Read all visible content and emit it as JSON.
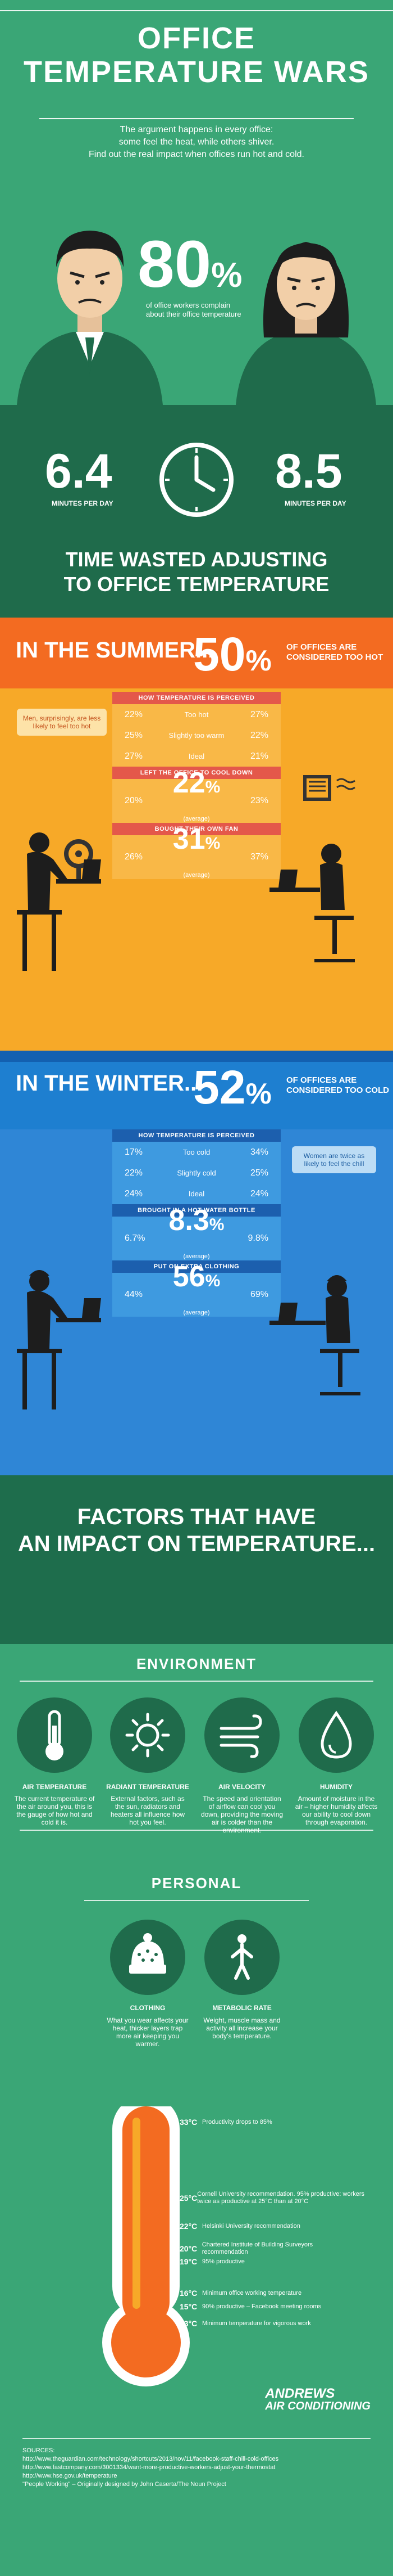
{
  "hero": {
    "title_line1": "OFFICE",
    "title_line2": "TEMPERATURE WARS",
    "intro1": "The argument happens in every office:",
    "intro2": "some feel the heat, while others shiver.",
    "intro3": "Find out the real impact when offices run hot and cold."
  },
  "stat80": {
    "value": "80",
    "unit": "%",
    "caption": "of office workers complain about their office temperature"
  },
  "time": {
    "left_value": "6.4",
    "left_label": "MINUTES PER DAY",
    "right_value": "8.5",
    "right_label": "MINUTES PER DAY",
    "heading1": "TIME WASTED ADJUSTING",
    "heading2": "TO OFFICE TEMPERATURE"
  },
  "summer": {
    "season": "IN THE SUMMER...",
    "pct": "50",
    "unit": "%",
    "note1": "OF OFFICES ARE",
    "note2": "CONSIDERED TOO HOT",
    "callout": "Men, surprisingly, are less likely to feel too hot",
    "perceived_header": "HOW TEMPERATURE IS PERCEIVED",
    "perceived": [
      {
        "left": "22%",
        "label": "Too hot",
        "right": "27%"
      },
      {
        "left": "25%",
        "label": "Slightly too warm",
        "right": "22%"
      },
      {
        "left": "27%",
        "label": "Ideal",
        "right": "21%"
      }
    ],
    "left_office_header": "LEFT THE OFFICE TO COOL DOWN",
    "left_office": {
      "left": "20%",
      "center": "22",
      "unit": "%",
      "avg": "(average)",
      "right": "23%"
    },
    "fan_header": "BOUGHT THEIR OWN FAN",
    "fan": {
      "left": "26%",
      "center": "31",
      "unit": "%",
      "avg": "(average)",
      "right": "37%"
    }
  },
  "winter": {
    "season": "IN THE WINTER...",
    "pct": "52",
    "unit": "%",
    "note1": "OF OFFICES ARE",
    "note2": "CONSIDERED TOO COLD",
    "callout": "Women are twice as likely to feel the chill",
    "perceived_header": "HOW TEMPERATURE IS PERCEIVED",
    "perceived": [
      {
        "left": "17%",
        "label": "Too cold",
        "right": "34%"
      },
      {
        "left": "22%",
        "label": "Slightly cold",
        "right": "25%"
      },
      {
        "left": "24%",
        "label": "Ideal",
        "right": "24%"
      }
    ],
    "bottle_header": "BROUGHT IN A HOT WATER BOTTLE",
    "bottle": {
      "left": "6.7%",
      "center": "8.3",
      "unit": "%",
      "avg": "(average)",
      "right": "9.8%"
    },
    "clothing_header": "PUT ON EXTRA CLOTHING",
    "clothing": {
      "left": "44%",
      "center": "56",
      "unit": "%",
      "avg": "(average)",
      "right": "69%"
    }
  },
  "factors": {
    "heading1": "FACTORS THAT HAVE",
    "heading2": "AN IMPACT ON TEMPERATURE..."
  },
  "environment": {
    "heading": "ENVIRONMENT",
    "items": [
      {
        "title": "AIR TEMPERATURE",
        "desc": "The current temperature of the air around you, this is the gauge of how hot and cold it is."
      },
      {
        "title": "RADIANT TEMPERATURE",
        "desc": "External factors, such as the sun, radiators and heaters all influence how hot you feel."
      },
      {
        "title": "AIR VELOCITY",
        "desc": "The speed and orientation of airflow can cool you down, providing the moving air is colder than the environment."
      },
      {
        "title": "HUMIDITY",
        "desc": "Amount of moisture in the air – higher humidity affects our ability to cool down through evaporation."
      }
    ]
  },
  "personal": {
    "heading": "PERSONAL",
    "items": [
      {
        "title": "CLOTHING",
        "desc": "What you wear affects your heat, thicker layers trap more air keeping you warmer."
      },
      {
        "title": "METABOLIC RATE",
        "desc": "Weight, muscle mass and activity all increase your body's temperature."
      }
    ]
  },
  "thermometer": {
    "marks": [
      {
        "temp": "33°C",
        "text": "Productivity drops to 85%"
      },
      {
        "temp": "25°C",
        "text": "Cornell University recommendation. 95% productive: workers twice as productive at 25°C than at 20°C"
      },
      {
        "temp": "22°C",
        "text": "Helsinki University recommendation"
      },
      {
        "temp": "20°C",
        "text": "Chartered Institute of Building Surveyors recommendation"
      },
      {
        "temp": "19°C",
        "text": "95% productive"
      },
      {
        "temp": "16°C",
        "text": "Minimum office working temperature"
      },
      {
        "temp": "15°C",
        "text": "90% productive – Facebook meeting rooms"
      },
      {
        "temp": "13°C",
        "text": "Minimum temperature for vigorous work"
      }
    ]
  },
  "logo": {
    "line1": "ANDREWS",
    "line2": "AIR CONDITIONING"
  },
  "sources": {
    "heading": "SOURCES:",
    "items": [
      "http://www.theguardian.com/technology/shortcuts/2013/nov/11/facebook-staff-chill-cold-offices",
      "http://www.fastcompany.com/3001334/want-more-productive-workers-adjust-your-thermostat",
      "http://www.hse.gov.uk/temperature",
      "\"People Working\" – Originally designed by John Caserta/The Noun Project"
    ]
  },
  "colors": {
    "green": "#3aa676",
    "dark_green": "#1f6b4b",
    "orange": "#f36b21",
    "yellow": "#f7a928",
    "blue": "#2f86d6",
    "red": "#e4584a"
  }
}
